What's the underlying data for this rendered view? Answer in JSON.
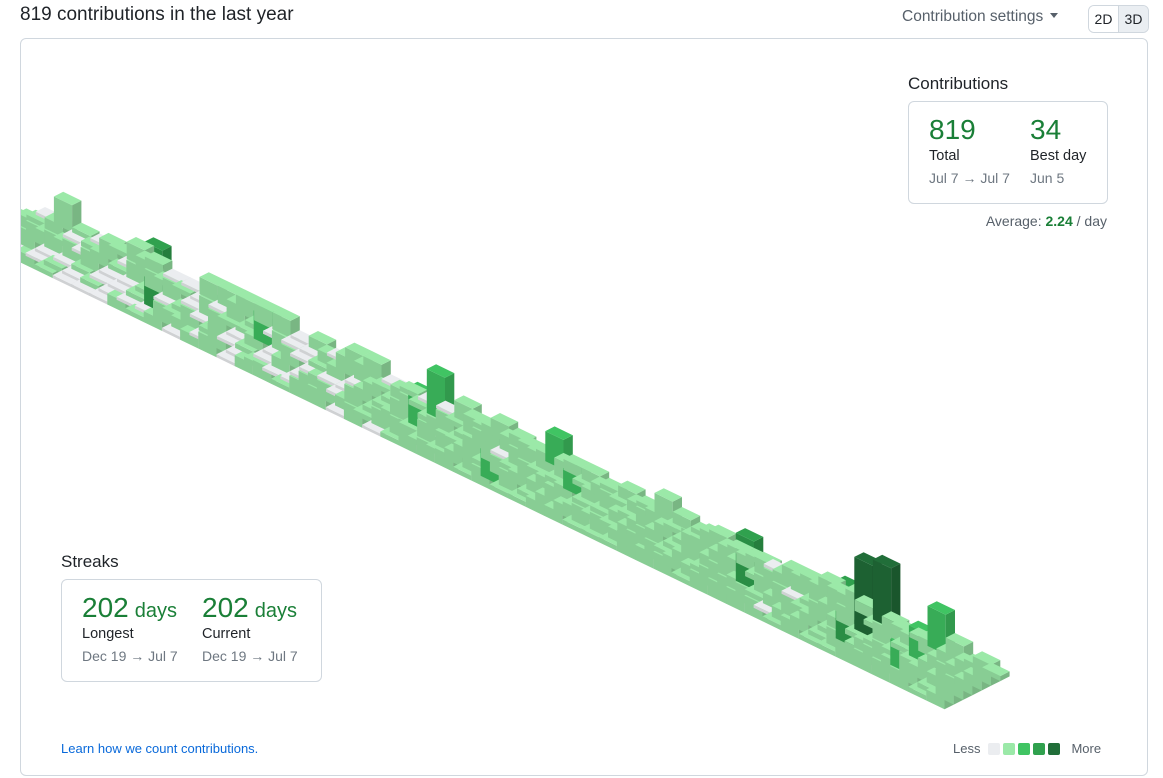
{
  "header": {
    "title": "819 contributions in the last year",
    "settings_label": "Contribution settings",
    "toggle_2d": "2D",
    "toggle_3d": "3D"
  },
  "contributions": {
    "title": "Contributions",
    "total_value": "819",
    "total_label": "Total",
    "total_range": "Jul 7 → Jul 7",
    "best_value": "34",
    "best_label": "Best day",
    "best_date": "Jun 5",
    "average_prefix": "Average:",
    "average_value": "2.24",
    "average_suffix": "/ day"
  },
  "streaks": {
    "title": "Streaks",
    "longest_value": "202",
    "longest_unit": "days",
    "longest_label": "Longest",
    "longest_range": "Dec 19 → Jul 7",
    "current_value": "202",
    "current_unit": "days",
    "current_label": "Current",
    "current_range": "Dec 19 → Jul 7"
  },
  "footer": {
    "learn_link": "Learn how we count contributions.",
    "legend_less": "Less",
    "legend_more": "More"
  },
  "colors": {
    "level0": "#ebedf0",
    "level1": "#9be9a8",
    "level2": "#40c463",
    "level3": "#30a14e",
    "level4": "#216e39",
    "accent": "#1a7f37",
    "link": "#0969da"
  }
}
